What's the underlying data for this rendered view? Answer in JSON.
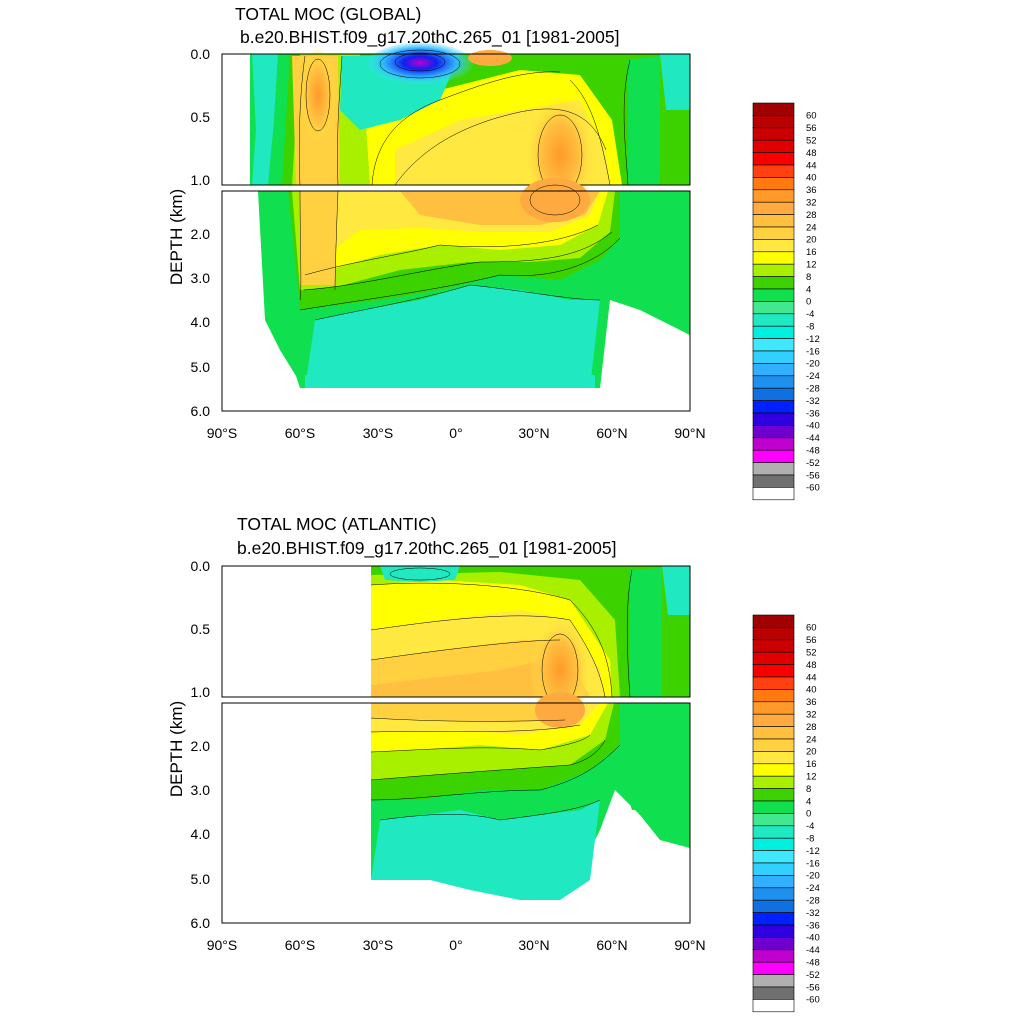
{
  "chart_data": [
    {
      "type": "contour",
      "title": "TOTAL MOC (GLOBAL)",
      "subtitle": "b.e20.BHIST.f09_g17.20thC.265_01 [1981-2005]",
      "ylabel": "DEPTH (km)",
      "xlabel": "",
      "xlim": [
        -90,
        90
      ],
      "x_ticks": [
        -90,
        -60,
        -30,
        0,
        30,
        60,
        90
      ],
      "x_tick_labels": [
        "90°S",
        "60°S",
        "30°S",
        "0°",
        "30°N",
        "60°N",
        "90°N"
      ],
      "y_upper_ticks": [
        "0.0",
        "0.5",
        "1.0"
      ],
      "y_lower_ticks": [
        "2.0",
        "3.0",
        "4.0",
        "5.0",
        "6.0"
      ],
      "upper_depth_range_km": [
        0,
        1
      ],
      "lower_depth_range_km": [
        1,
        6
      ],
      "features": [
        {
          "name": "Southern Ocean overturning cell",
          "lat_center": -50,
          "max_value": 32
        },
        {
          "name": "Tropical subsurface negative cell",
          "lat_center": -15,
          "min_value": -44
        },
        {
          "name": "NH upper overturning cell",
          "lat_center": 40,
          "max_value": 36
        },
        {
          "name": "Abyssal negative cell",
          "lat_range": [
            -65,
            55
          ],
          "depth_range_km": [
            3.5,
            5.5
          ],
          "value": -4
        }
      ]
    },
    {
      "type": "contour",
      "title": "TOTAL MOC (ATLANTIC)",
      "subtitle": "b.e20.BHIST.f09_g17.20thC.265_01 [1981-2005]",
      "ylabel": "DEPTH (km)",
      "xlabel": "",
      "xlim": [
        -90,
        90
      ],
      "x_ticks": [
        -90,
        -60,
        -30,
        0,
        30,
        60,
        90
      ],
      "x_tick_labels": [
        "90°S",
        "60°S",
        "30°S",
        "0°",
        "30°N",
        "60°N",
        "90°N"
      ],
      "y_upper_ticks": [
        "0.0",
        "0.5",
        "1.0"
      ],
      "y_lower_ticks": [
        "2.0",
        "3.0",
        "4.0",
        "5.0",
        "6.0"
      ],
      "upper_depth_range_km": [
        0,
        1
      ],
      "lower_depth_range_km": [
        1,
        6
      ],
      "data_lat_start": -34,
      "features": [
        {
          "name": "AMOC upper cell",
          "lat_center": 40,
          "max_value": 36
        },
        {
          "name": "Antarctic bottom water cell",
          "depth_range_km": [
            3.5,
            5.5
          ],
          "value": -4
        }
      ]
    }
  ],
  "colorbar": {
    "labels": [
      "60",
      "56",
      "52",
      "48",
      "44",
      "40",
      "36",
      "32",
      "28",
      "24",
      "20",
      "16",
      "12",
      "8",
      "4",
      "0",
      "-4",
      "-8",
      "-12",
      "-16",
      "-20",
      "-24",
      "-28",
      "-32",
      "-36",
      "-40",
      "-44",
      "-48",
      "-52",
      "-56",
      "-60"
    ],
    "colors": [
      "#a00000",
      "#b80000",
      "#cc0000",
      "#e00000",
      "#f80000",
      "#ff4010",
      "#ff7a10",
      "#ff9a28",
      "#ffaa40",
      "#ffc040",
      "#ffd040",
      "#ffe840",
      "#ffff00",
      "#a8f000",
      "#3cd200",
      "#10e050",
      "#40e890",
      "#20e8c0",
      "#00f0e0",
      "#40e8ff",
      "#30d0ff",
      "#30b0ff",
      "#2090f0",
      "#1070e0",
      "#0020ff",
      "#3000e0",
      "#7000d0",
      "#c000d0",
      "#ff00ff",
      "#b0b0b0",
      "#707070",
      "#ffffff"
    ]
  }
}
